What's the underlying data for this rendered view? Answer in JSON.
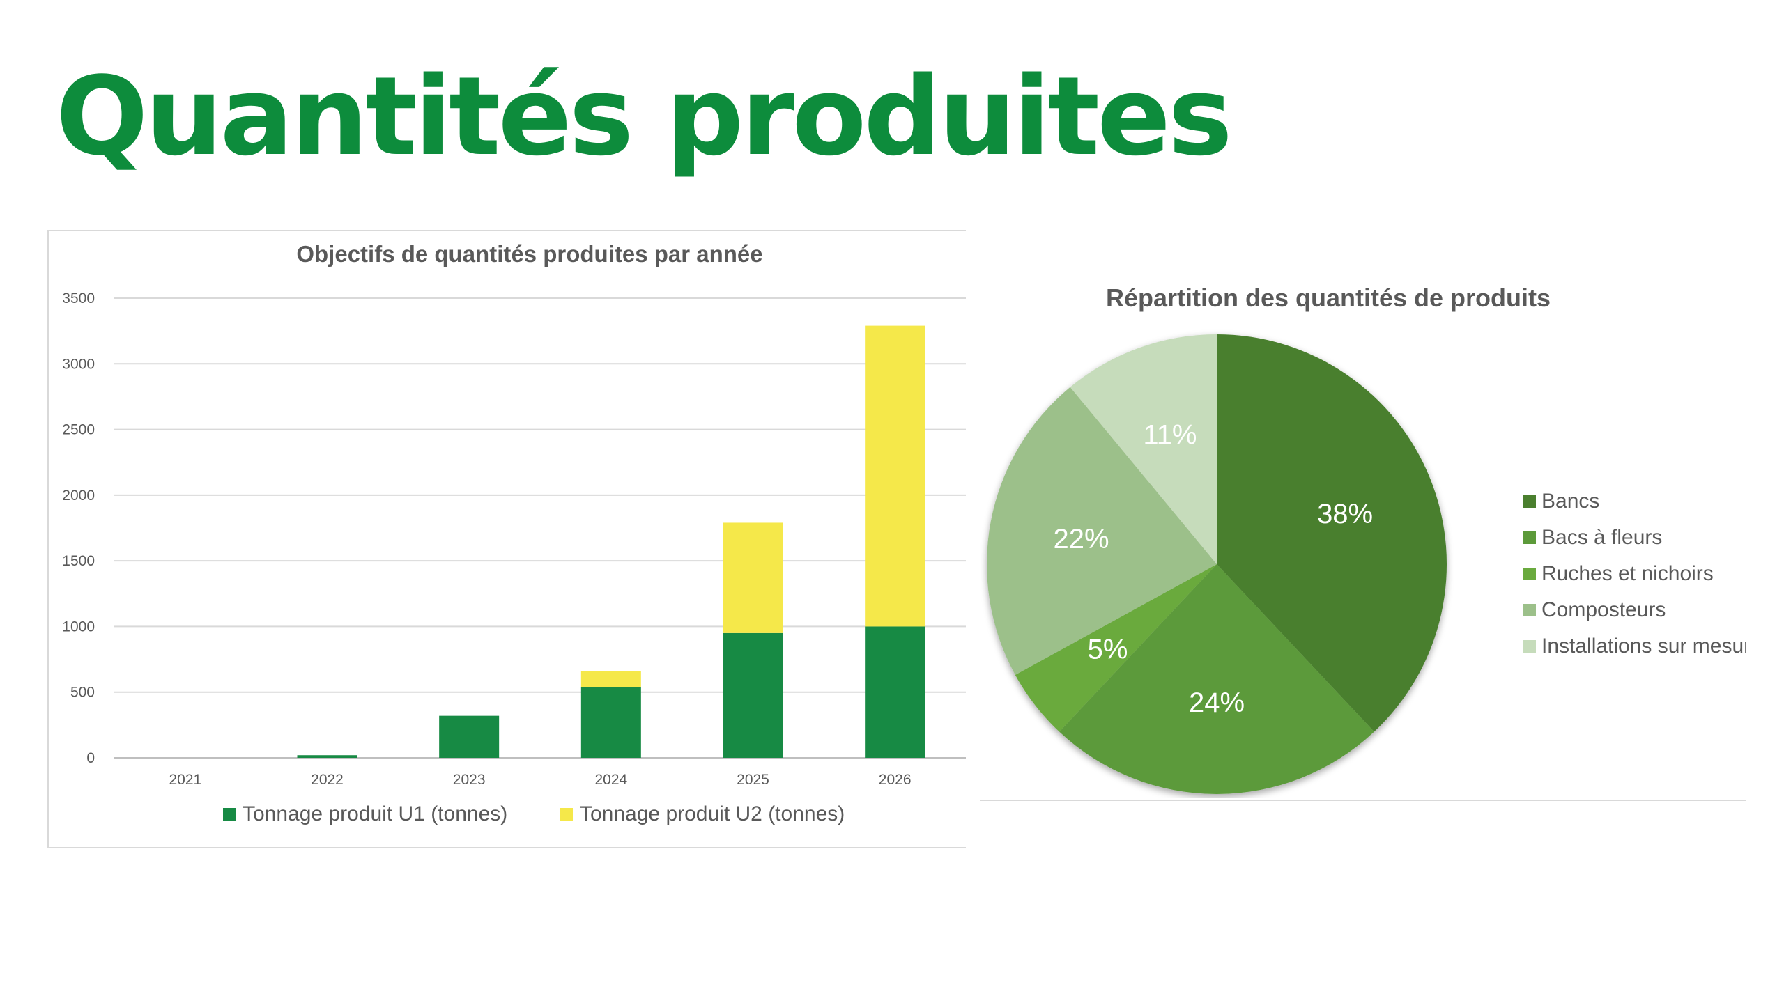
{
  "slide": {
    "title": "Quantités produites"
  },
  "chart_data": [
    {
      "type": "bar",
      "stacked": true,
      "title": "Objectifs de quantités produites par année",
      "xlabel": "",
      "ylabel": "",
      "categories": [
        "2021",
        "2022",
        "2023",
        "2024",
        "2025",
        "2026"
      ],
      "series": [
        {
          "name": "Tonnage produit U1 (tonnes)",
          "color": "#178a44",
          "values": [
            0,
            20,
            320,
            540,
            950,
            1000
          ]
        },
        {
          "name": "Tonnage produit U2 (tonnes)",
          "color": "#f5e84a",
          "values": [
            0,
            0,
            0,
            120,
            840,
            2290
          ]
        }
      ],
      "ylim": [
        0,
        3500
      ],
      "yticks": [
        0,
        500,
        1000,
        1500,
        2000,
        2500,
        3000,
        3500
      ],
      "grid": true,
      "legend": "bottom"
    },
    {
      "type": "pie",
      "title": "Répartition des quantités de produits",
      "slices": [
        {
          "label": "Bancs",
          "value": 38,
          "display": "38%",
          "color": "#4a7f2e"
        },
        {
          "label": "Bacs à fleurs",
          "value": 24,
          "display": "24%",
          "color": "#5c9a3a"
        },
        {
          "label": "Ruches et nichoirs",
          "value": 5,
          "display": "5%",
          "color": "#6aaa3e"
        },
        {
          "label": "Composteurs",
          "value": 22,
          "display": "22%",
          "color": "#9cc08a"
        },
        {
          "label": "Installations sur mesure",
          "value": 11,
          "display": "11%",
          "color": "#c6dcbb"
        }
      ],
      "legend": "right"
    }
  ]
}
